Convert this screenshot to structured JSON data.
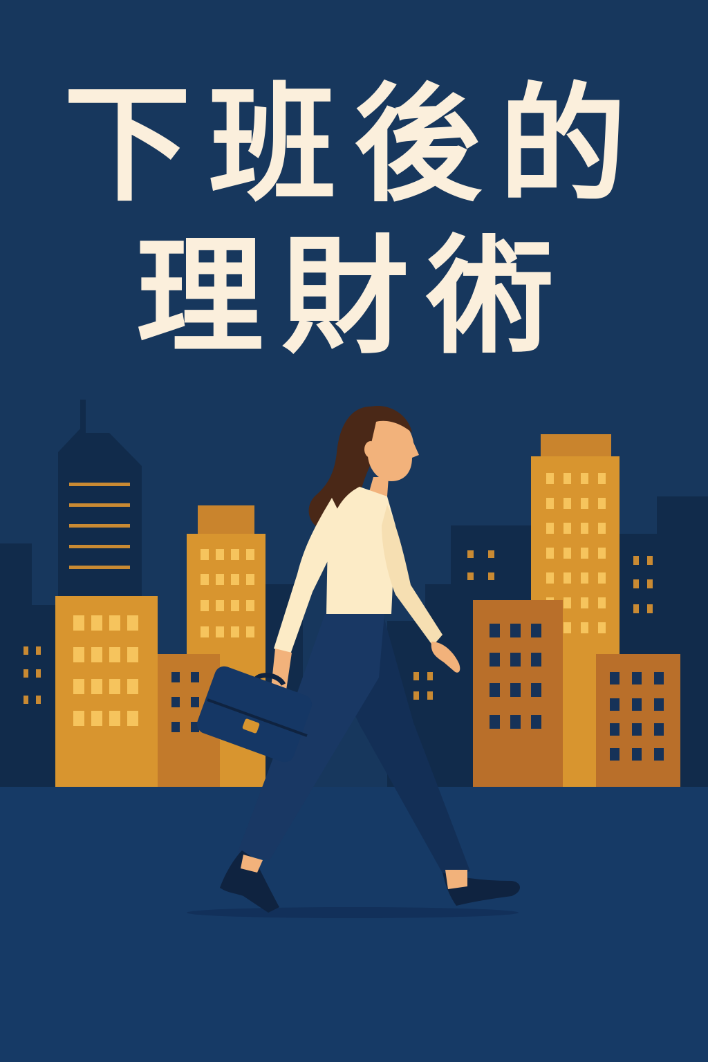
{
  "poster": {
    "title_line_1": "下班後的",
    "title_line_2": "理財術"
  },
  "colors": {
    "background": "#17375d",
    "ground": "#163a66",
    "title_text": "#fbefdc",
    "building_dark": "#112b4b",
    "building_gold": "#d8952f",
    "building_rust": "#b96f2a",
    "window_light": "#f6c45d",
    "window_dark": "#163258",
    "shirt": "#fcebc6",
    "pants": "#193864",
    "skin": "#f2b27b",
    "hair": "#4a2817",
    "briefcase": "#153765"
  },
  "icons": {
    "figure": "woman-walking-icon",
    "bag": "briefcase-icon",
    "backdrop": "city-skyline-icon"
  }
}
